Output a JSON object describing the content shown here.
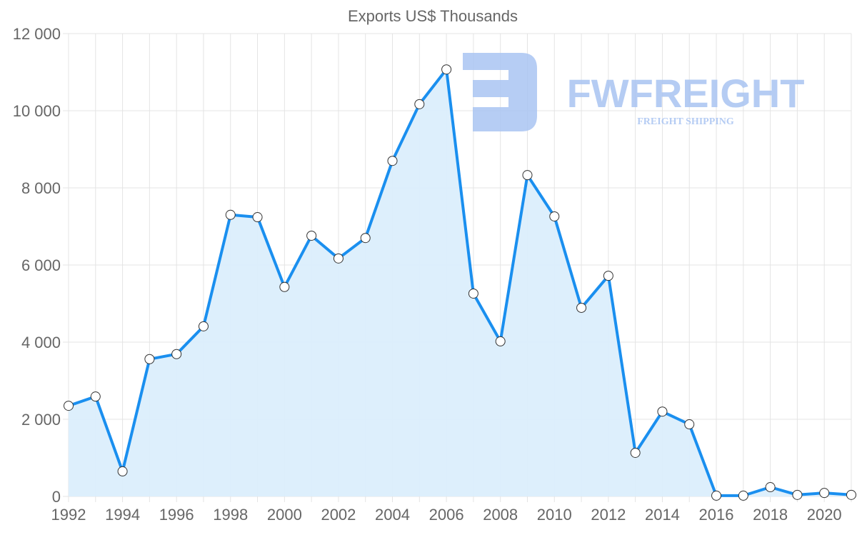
{
  "chart_data": {
    "type": "area",
    "title": "Exports US$ Thousands",
    "xlabel": "",
    "ylabel": "",
    "x": [
      1992,
      1993,
      1994,
      1995,
      1996,
      1997,
      1998,
      1999,
      2000,
      2001,
      2002,
      2003,
      2004,
      2005,
      2006,
      2007,
      2008,
      2009,
      2010,
      2011,
      2012,
      2013,
      2014,
      2015,
      2016,
      2017,
      2018,
      2019,
      2020,
      2021
    ],
    "series": [
      {
        "name": "Exports US$ Thousands",
        "values": [
          2350,
          2590,
          650,
          3560,
          3690,
          4410,
          7300,
          7240,
          5430,
          6760,
          6170,
          6700,
          8700,
          10170,
          11070,
          5260,
          4020,
          8330,
          7260,
          4890,
          5720,
          1130,
          2200,
          1870,
          20,
          20,
          240,
          40,
          90,
          40
        ]
      }
    ],
    "xlim": [
      1992,
      2021
    ],
    "ylim": [
      0,
      12000
    ],
    "yticks": [
      0,
      2000,
      4000,
      6000,
      8000,
      10000,
      12000
    ],
    "ytick_labels": [
      "0",
      "2 000",
      "4 000",
      "6 000",
      "8 000",
      "10 000",
      "12 000"
    ],
    "xticks": [
      1992,
      1994,
      1996,
      1998,
      2000,
      2002,
      2004,
      2006,
      2008,
      2010,
      2012,
      2014,
      2016,
      2018,
      2020
    ],
    "grid": true,
    "legend": "none",
    "colors": {
      "line": "#1a8fef",
      "fill": "#dbeefc",
      "grid": "#e4e4e4",
      "watermark": "#a9c4f2"
    }
  },
  "watermark": {
    "brand": "FWFREIGHT",
    "tagline": "FREIGHT SHIPPING"
  }
}
